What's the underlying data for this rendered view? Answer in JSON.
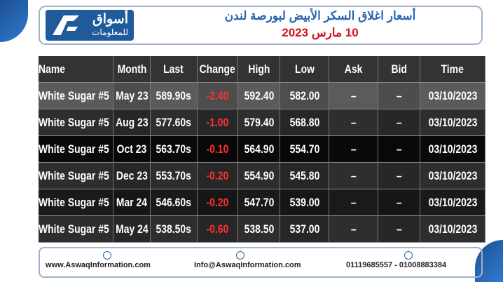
{
  "header": {
    "logo_top": "أسواق",
    "logo_bottom": "للمعلومات",
    "title": "أسعار اغلاق السكر الأبيض لبورصة لندن",
    "date": "10 مارس 2023"
  },
  "table": {
    "columns": [
      "Name",
      "Month",
      "Last",
      "Change",
      "High",
      "Low",
      "Ask",
      "Bid",
      "Time"
    ],
    "rows": [
      [
        "White Sugar #5",
        "May 23",
        "589.90s",
        "-2.40",
        "592.40",
        "582.00",
        "–",
        "–",
        "03/10/2023"
      ],
      [
        "White Sugar #5",
        "Aug 23",
        "577.60s",
        "-1.00",
        "579.40",
        "568.80",
        "–",
        "–",
        "03/10/2023"
      ],
      [
        "White Sugar #5",
        "Oct 23",
        "563.70s",
        "-0.10",
        "564.90",
        "554.70",
        "–",
        "–",
        "03/10/2023"
      ],
      [
        "White Sugar #5",
        "Dec 23",
        "553.70s",
        "-0.20",
        "554.90",
        "545.80",
        "–",
        "–",
        "03/10/2023"
      ],
      [
        "White Sugar #5",
        "Mar 24",
        "546.60s",
        "-0.20",
        "547.70",
        "539.00",
        "–",
        "–",
        "03/10/2023"
      ],
      [
        "White Sugar #5",
        "May 24",
        "538.50s",
        "-0.60",
        "538.50",
        "537.00",
        "–",
        "–",
        "03/10/2023"
      ]
    ]
  },
  "footer": {
    "website": "www.AswaqInformation.com",
    "email": "Info@AswaqInformation.com",
    "phone": "01119685557 - 01008883384"
  }
}
